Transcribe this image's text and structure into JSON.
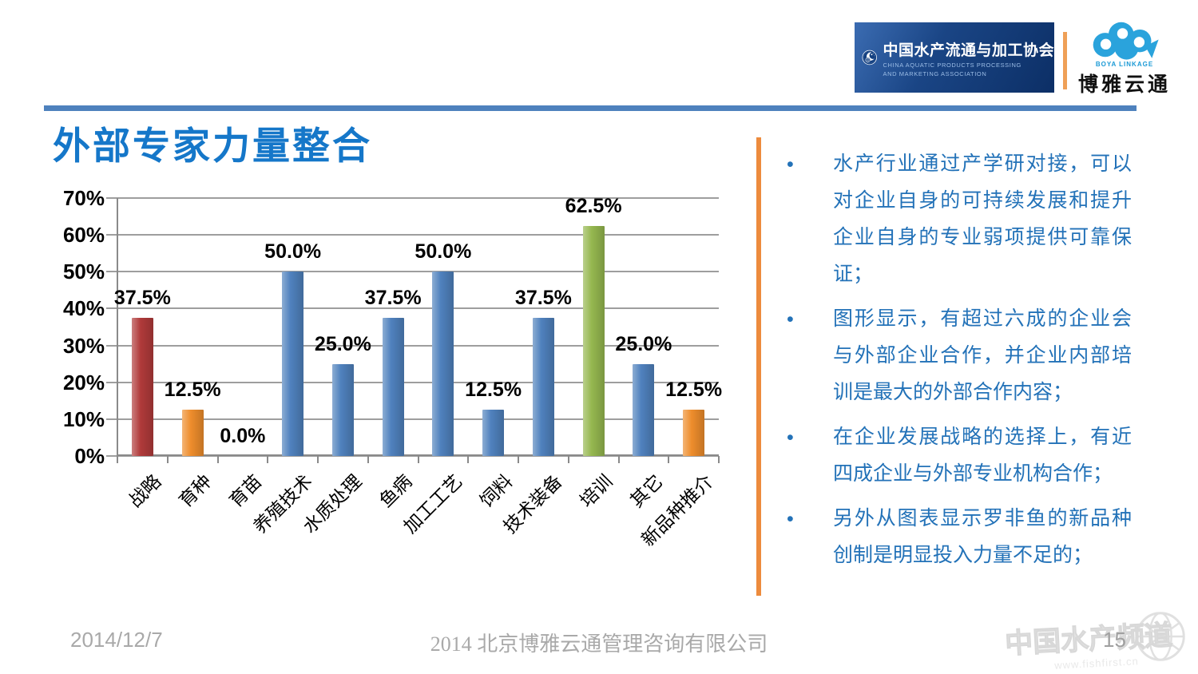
{
  "header": {
    "association_logo": {
      "name_cn": "中国水产流通与加工协会",
      "name_en_line1": "CHINA AQUATIC PRODUCTS PROCESSING",
      "name_en_line2": "AND MARKETING ASSOCIATION"
    },
    "boya_logo": {
      "brand_en": "BOYA LINKAGE",
      "brand_cn": "博雅云通"
    }
  },
  "page_title": "外部专家力量整合",
  "chart_data": {
    "type": "bar",
    "title": "",
    "xlabel": "",
    "ylabel": "",
    "categories": [
      "战略",
      "育种",
      "育苗",
      "养殖技术",
      "水质处理",
      "鱼病",
      "加工工艺",
      "饲料",
      "技术装备",
      "培训",
      "其它",
      "新品种推介"
    ],
    "values": [
      37.5,
      12.5,
      0.0,
      50.0,
      25.0,
      37.5,
      50.0,
      12.5,
      37.5,
      62.5,
      25.0,
      12.5
    ],
    "point_labels": [
      "37.5%",
      "12.5%",
      "0.0%",
      "50.0%",
      "25.0%",
      "37.5%",
      "50.0%",
      "12.5%",
      "37.5%",
      "62.5%",
      "25.0%",
      "12.5%"
    ],
    "bar_colors": [
      "#b03a3a",
      "#ee8d2c",
      "#4f81bd",
      "#4f81bd",
      "#4f81bd",
      "#4f81bd",
      "#4f81bd",
      "#4f81bd",
      "#4f81bd",
      "#95b74f",
      "#4f81bd",
      "#ee8d2c"
    ],
    "ylim": [
      0,
      70
    ],
    "ytick_step": 10,
    "ytick_suffix": "%",
    "grid": true,
    "legend": "none"
  },
  "bullets": [
    "水产行业通过产学研对接，可以对企业自身的可持续发展和提升企业自身的专业弱项提供可靠保证；",
    "图形显示，有超过六成的企业会与外部企业合作，并企业内部培训是最大的外部合作内容；",
    "在企业发展战略的选择上，有近四成企业与外部专业机构合作；",
    "另外从图表显示罗非鱼的新品种创制是明显投入力量不足的；"
  ],
  "footer": {
    "date": "2014/12/7",
    "company": "2014 北京博雅云通管理咨询有限公司",
    "page_number": "15"
  },
  "watermark": {
    "text": "中国水产频道",
    "url": "www.fishfirst.cn"
  },
  "colors": {
    "title_blue": "#1577c9",
    "rule_blue": "#4e81bd",
    "divider_orange": "#ed8b3d",
    "bullet_text_blue": "#2372b8",
    "footer_gray": "#a9a9a9",
    "bar_blue": "#4f81bd",
    "bar_red": "#b03a3a",
    "bar_orange": "#ee8d2c",
    "bar_green": "#95b74f"
  }
}
